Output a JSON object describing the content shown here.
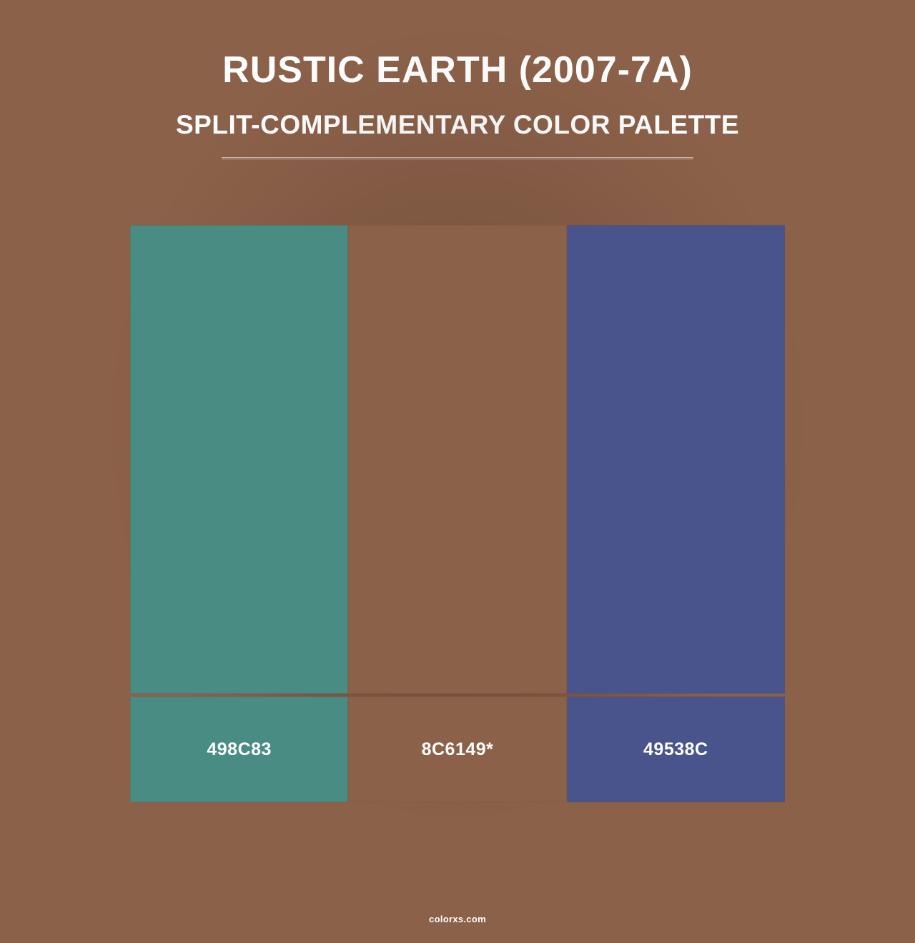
{
  "background_color": "#8c6149",
  "header": {
    "title": "RUSTIC EARTH (2007-7A)",
    "subtitle": "SPLIT-COMPLEMENTARY COLOR PALETTE",
    "title_fontsize": 52,
    "subtitle_fontsize": 37,
    "text_color": "#ffffff",
    "divider_color": "rgba(255,255,255,0.55)",
    "divider_width": 660
  },
  "palette": {
    "type": "color-swatch-row",
    "swatch_height": 656,
    "label_height": 148,
    "total_width": 916,
    "gap": 0,
    "label_fontsize": 25,
    "label_text_color": "#ffffff",
    "border_color": "rgba(120,80,60,0.35)",
    "swatches": [
      {
        "hex": "#498c83",
        "label": "498C83"
      },
      {
        "hex": "#8c6149",
        "label": "8C6149*"
      },
      {
        "hex": "#49538c",
        "label": "49538C"
      }
    ]
  },
  "footer": {
    "text": "colorxs.com",
    "text_color": "#ffffff",
    "fontsize": 13
  }
}
